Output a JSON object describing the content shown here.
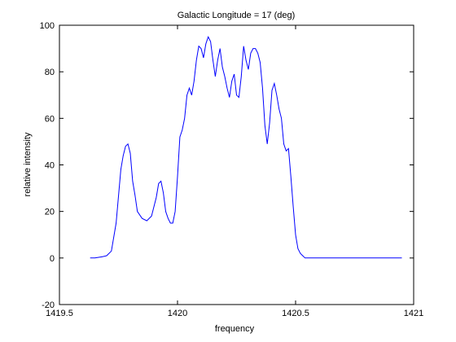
{
  "chart_data": {
    "type": "line",
    "title": "Galactic Longitude = 17 (deg)",
    "xlabel": "frequency",
    "ylabel": "relative intensity",
    "xlim": [
      1419.5,
      1421
    ],
    "ylim": [
      -20,
      100
    ],
    "x_ticks": [
      1419.5,
      1420,
      1420.5,
      1421
    ],
    "x_tick_labels": [
      "1419.5",
      "1420",
      "1420.5",
      "1421"
    ],
    "y_ticks": [
      -20,
      0,
      20,
      40,
      60,
      80,
      100
    ],
    "y_tick_labels": [
      "-20",
      "0",
      "20",
      "40",
      "60",
      "80",
      "100"
    ],
    "grid": false,
    "series": [
      {
        "color": "#0000ff",
        "x": [
          1419.63,
          1419.65,
          1419.68,
          1419.7,
          1419.72,
          1419.74,
          1419.76,
          1419.77,
          1419.78,
          1419.79,
          1419.8,
          1419.81,
          1419.82,
          1419.83,
          1419.85,
          1419.87,
          1419.89,
          1419.91,
          1419.92,
          1419.93,
          1419.94,
          1419.95,
          1419.96,
          1419.97,
          1419.98,
          1419.99,
          1420.0,
          1420.01,
          1420.02,
          1420.03,
          1420.04,
          1420.05,
          1420.06,
          1420.07,
          1420.08,
          1420.09,
          1420.1,
          1420.11,
          1420.12,
          1420.13,
          1420.14,
          1420.15,
          1420.16,
          1420.17,
          1420.18,
          1420.19,
          1420.2,
          1420.21,
          1420.22,
          1420.23,
          1420.24,
          1420.25,
          1420.26,
          1420.27,
          1420.28,
          1420.29,
          1420.3,
          1420.31,
          1420.32,
          1420.33,
          1420.34,
          1420.35,
          1420.36,
          1420.37,
          1420.38,
          1420.39,
          1420.4,
          1420.41,
          1420.42,
          1420.43,
          1420.44,
          1420.45,
          1420.46,
          1420.47,
          1420.48,
          1420.49,
          1420.5,
          1420.51,
          1420.52,
          1420.53,
          1420.54,
          1420.55,
          1420.56,
          1420.57,
          1420.58,
          1420.59,
          1420.6,
          1420.61,
          1420.62,
          1420.63,
          1420.65,
          1420.68,
          1420.72,
          1420.76,
          1420.8,
          1420.85,
          1420.9,
          1420.95
        ],
        "y": [
          0,
          0,
          0.5,
          1,
          3,
          15,
          38,
          44,
          48,
          49,
          45,
          33,
          27,
          20,
          17,
          16,
          18,
          26,
          32,
          33,
          28,
          20,
          17,
          15,
          15,
          20,
          35,
          52,
          55,
          60,
          70,
          73,
          70,
          76,
          85,
          91,
          90,
          86,
          92,
          95,
          93,
          85,
          78,
          85,
          90,
          82,
          78,
          73,
          69,
          76,
          79,
          70,
          69,
          78,
          91,
          85,
          81,
          88,
          90,
          90,
          88,
          84,
          73,
          57,
          49,
          58,
          72,
          75,
          70,
          64,
          60,
          49,
          46,
          47,
          35,
          22,
          10,
          4,
          2,
          1,
          0,
          0,
          0,
          0,
          0,
          0,
          0,
          0,
          0,
          0,
          0,
          0,
          0,
          0,
          0,
          0,
          0,
          0
        ]
      }
    ]
  }
}
